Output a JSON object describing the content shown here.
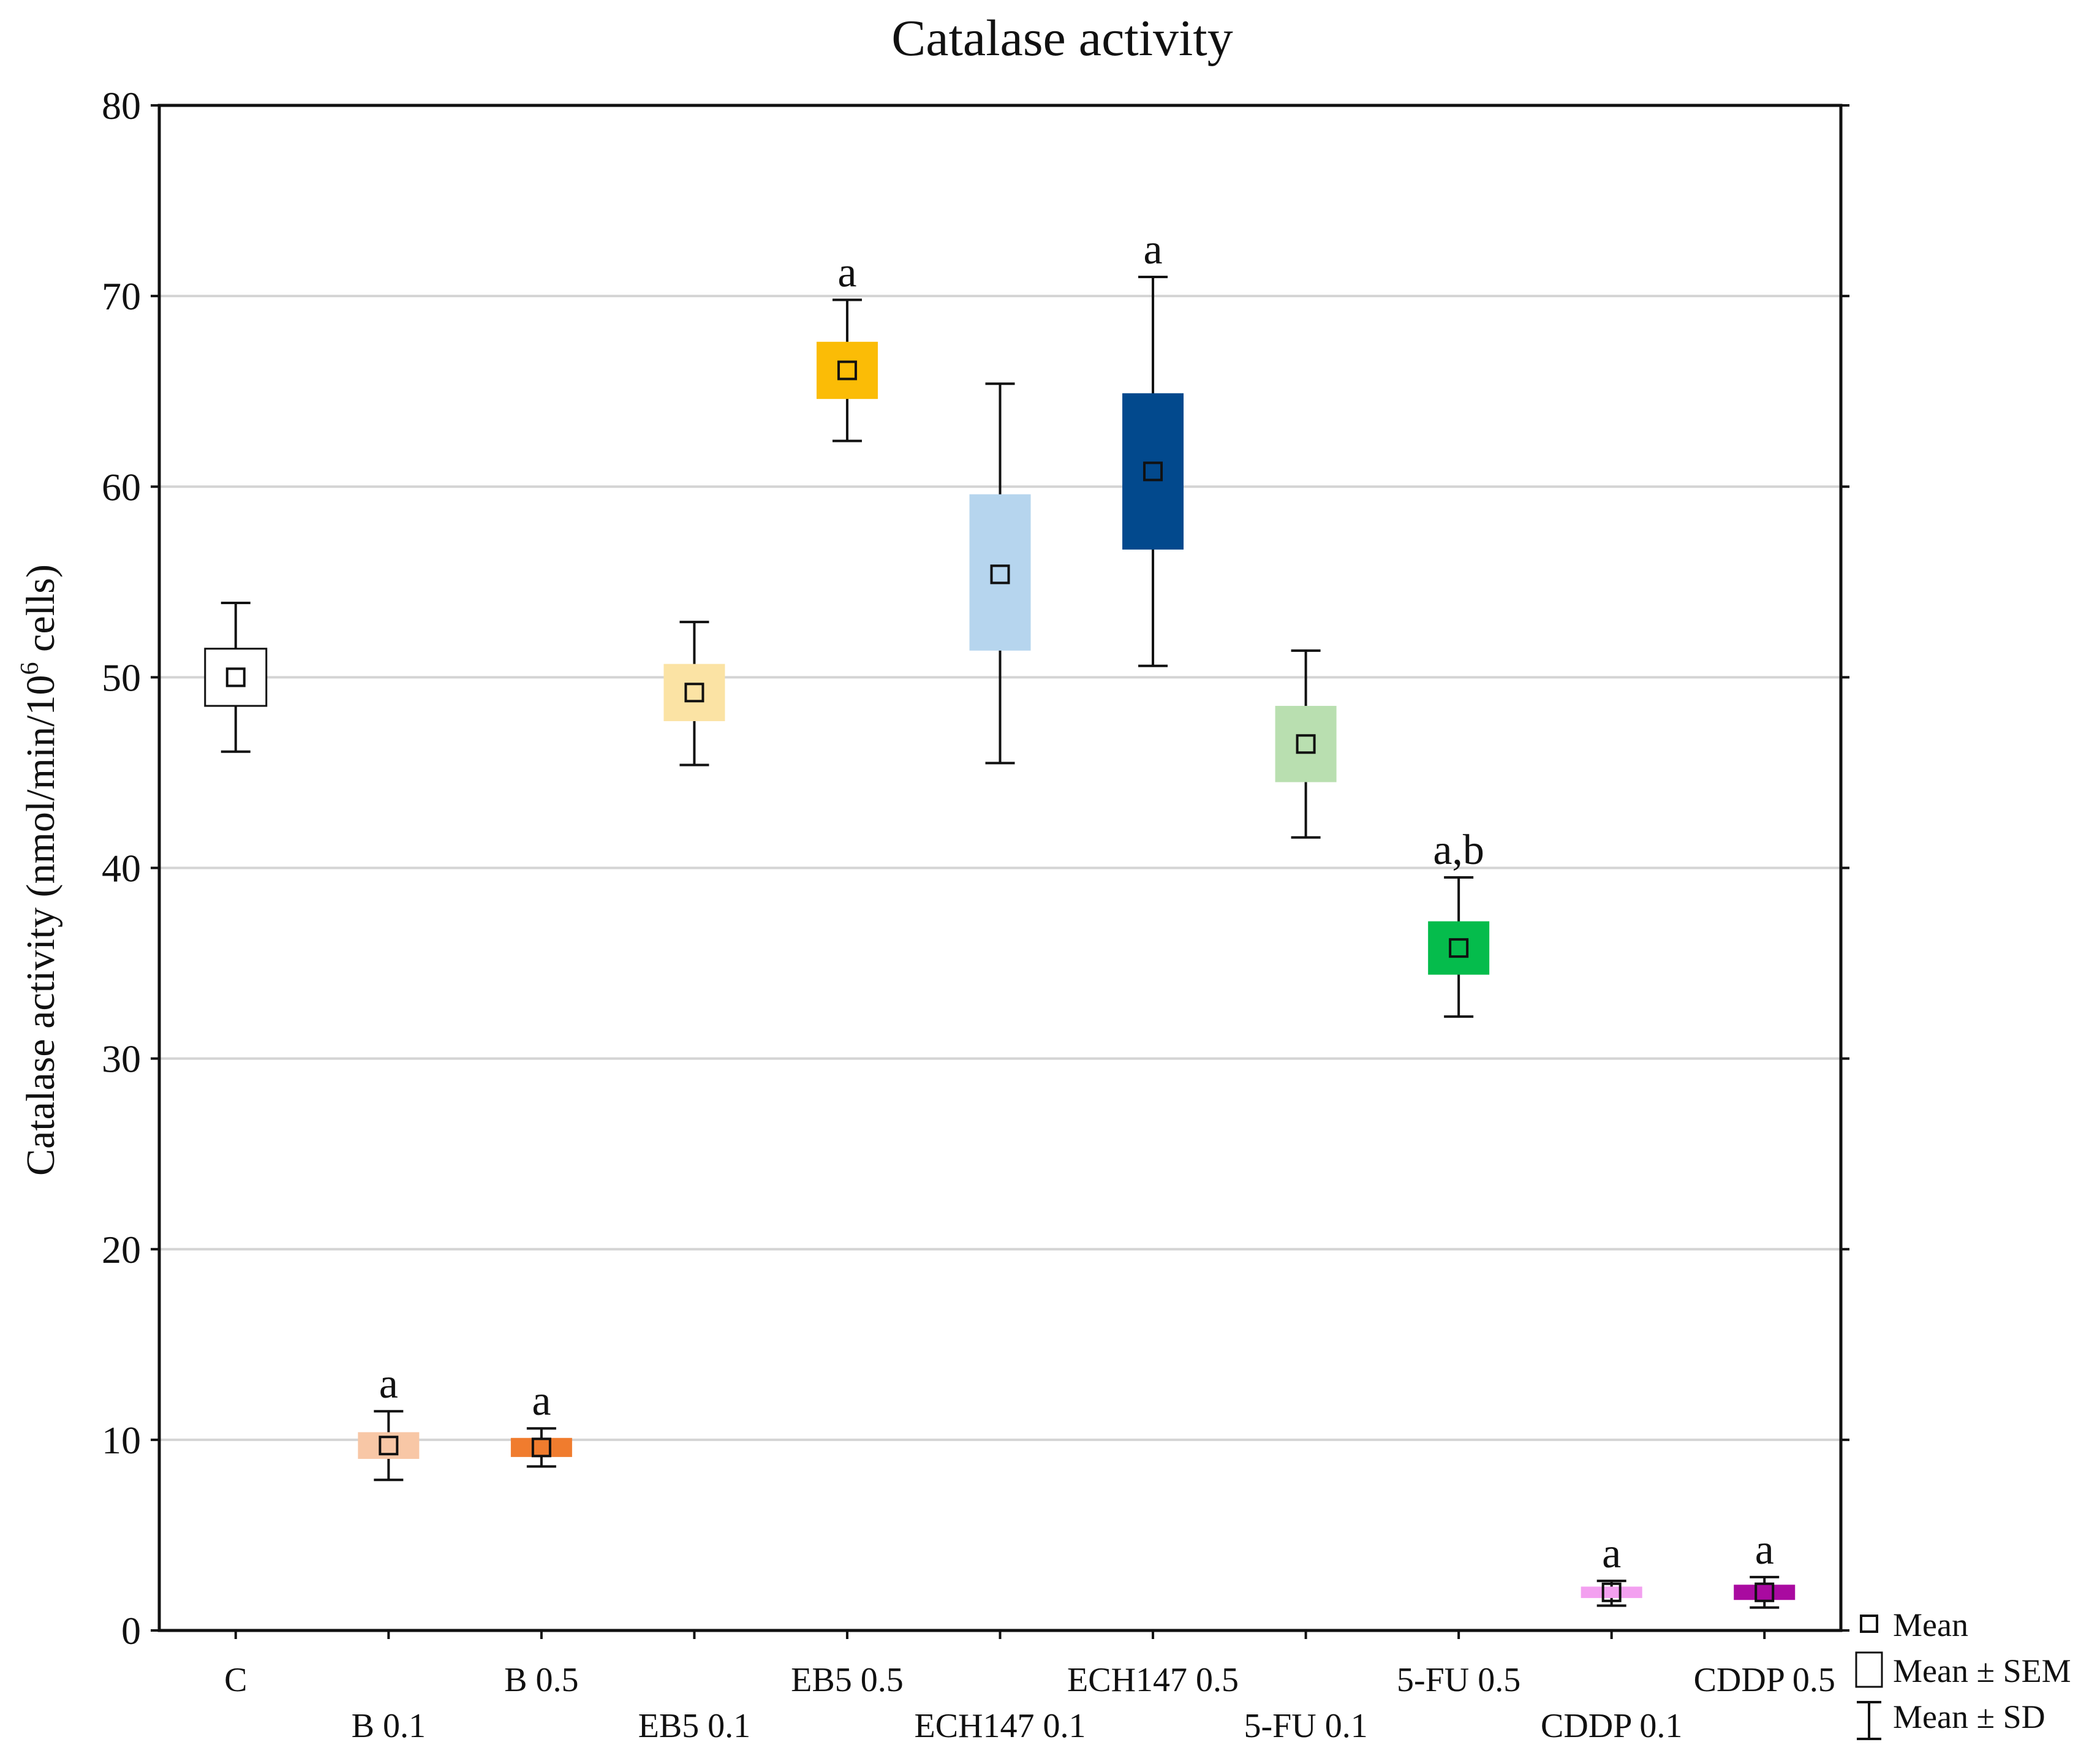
{
  "chart_data": {
    "type": "box",
    "title": "Catalase activity",
    "ylabel": "Catalase activity (nmol/min/10",
    "ylabel_sup": "6",
    "ylabel_tail": " cells)",
    "ylim": [
      0,
      80
    ],
    "yticks": [
      0,
      10,
      20,
      30,
      40,
      50,
      60,
      70,
      80
    ],
    "grid": true,
    "categories": [
      "C",
      "B 0.1",
      "B 0.5",
      "EB5 0.1",
      "EB5 0.5",
      "ECH147 0.1",
      "ECH147 0.5",
      "5-FU 0.1",
      "5-FU 0.5",
      "CDDP 0.1",
      "CDDP 0.5"
    ],
    "mean": [
      50.0,
      9.7,
      9.6,
      49.2,
      66.1,
      55.4,
      60.8,
      46.5,
      35.8,
      2.0,
      2.0
    ],
    "sem_low": [
      48.5,
      9.0,
      9.1,
      47.7,
      64.6,
      51.4,
      56.7,
      44.5,
      34.4,
      1.7,
      1.6
    ],
    "sem_high": [
      51.5,
      10.4,
      10.1,
      50.7,
      67.6,
      59.6,
      64.9,
      48.5,
      37.2,
      2.3,
      2.4
    ],
    "sd_low": [
      46.1,
      7.9,
      8.6,
      45.4,
      62.4,
      45.5,
      50.6,
      41.6,
      32.2,
      1.3,
      1.2
    ],
    "sd_high": [
      53.9,
      11.5,
      10.6,
      52.9,
      69.8,
      65.4,
      71.0,
      51.4,
      39.5,
      2.6,
      2.8
    ],
    "significance": [
      "",
      "a",
      "a",
      "",
      "a",
      "",
      "a",
      "",
      "a,b",
      "a",
      "a"
    ],
    "colors": [
      "#ffffff",
      "#f8c7a6",
      "#f07c2e",
      "#fbe3a4",
      "#fbbc06",
      "#b6d5ee",
      "#02498d",
      "#b9dfb0",
      "#05bc4c",
      "#f3a0f0",
      "#a90aa0"
    ],
    "legend": {
      "placement": "bottom-right-outside",
      "items": [
        "Mean",
        "Mean ± SEM",
        "Mean ± SD"
      ]
    }
  }
}
